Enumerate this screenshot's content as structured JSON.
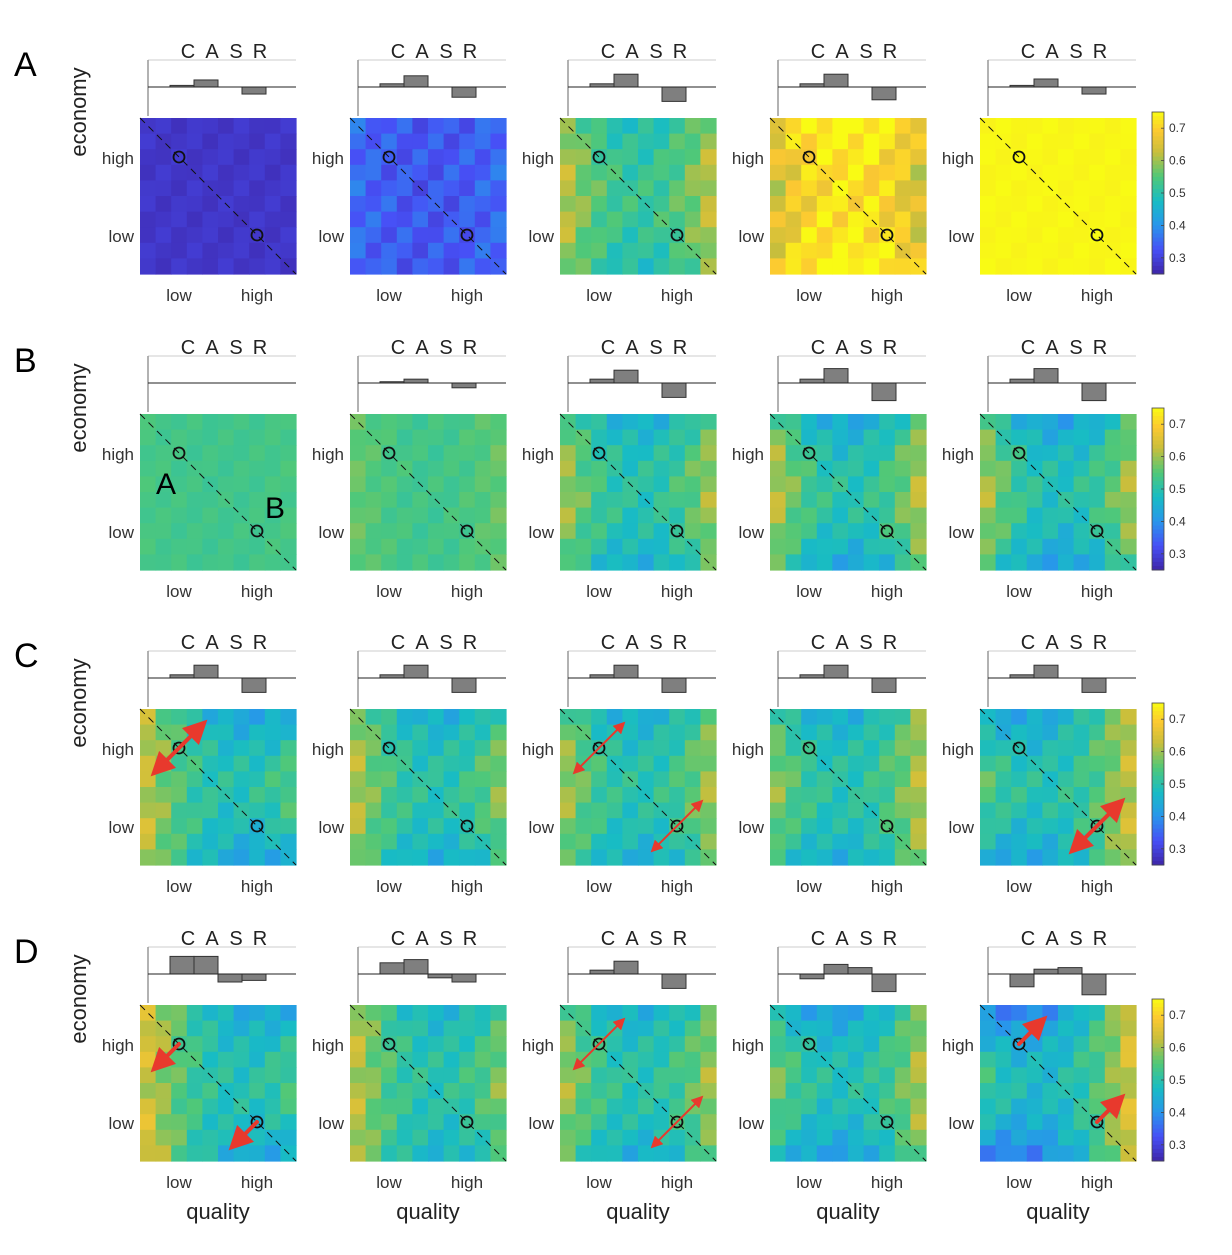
{
  "chart_data": {
    "type": "heatmap",
    "rows": [
      {
        "label": "A"
      },
      {
        "label": "B"
      },
      {
        "label": "C"
      },
      {
        "label": "D"
      }
    ],
    "bar_labels": [
      "C",
      "A",
      "S",
      "R"
    ],
    "xlabel": "quality",
    "ylabel": "economy",
    "x_ticks": [
      "low",
      "high"
    ],
    "y_ticks": [
      "high",
      "low"
    ],
    "point_labels": [
      "A",
      "B"
    ],
    "colorbar": {
      "ticks": [
        0.3,
        0.4,
        0.5,
        0.6,
        0.7
      ],
      "tick_labels": [
        "0.3",
        "0.4",
        "0.5",
        "0.6",
        "0.7"
      ],
      "range": [
        0.25,
        0.75
      ]
    },
    "panels": [
      [
        {
          "bars": [
            0.05,
            0.22,
            0,
            -0.22
          ],
          "field": {
            "base": 0.28,
            "edge": 0,
            "mid": 0,
            "grad": 0,
            "var": 0.01
          },
          "arrows": []
        },
        {
          "bars": [
            0.1,
            0.35,
            0,
            -0.32
          ],
          "field": {
            "base": 0.33,
            "edge": 0.03,
            "mid": 0,
            "grad": 0,
            "var": 0.03
          },
          "arrows": []
        },
        {
          "bars": [
            0.1,
            0.4,
            0,
            -0.45
          ],
          "field": {
            "base": 0.52,
            "edge": 0.12,
            "mid": -0.04,
            "grad": 0,
            "var": 0.03
          },
          "arrows": []
        },
        {
          "bars": [
            0.1,
            0.4,
            0,
            -0.4
          ],
          "field": {
            "base": 0.72,
            "edge": -0.1,
            "mid": 0.05,
            "grad": 0,
            "var": 0.04
          },
          "arrows": []
        },
        {
          "bars": [
            0.05,
            0.25,
            0,
            -0.22
          ],
          "field": {
            "base": 0.745,
            "edge": 0,
            "mid": 0,
            "grad": 0,
            "var": 0.005
          },
          "arrows": []
        }
      ],
      [
        {
          "bars": [
            0.01,
            0.01,
            0,
            -0.01
          ],
          "field": {
            "base": 0.53,
            "edge": 0.01,
            "mid": 0,
            "grad": 0,
            "var": 0.01
          },
          "arrows": []
        },
        {
          "bars": [
            0.04,
            0.12,
            0,
            -0.15
          ],
          "field": {
            "base": 0.53,
            "edge": 0.04,
            "mid": 0,
            "grad": 0,
            "var": 0.015
          },
          "arrows": []
        },
        {
          "bars": [
            0.12,
            0.4,
            0,
            -0.45
          ],
          "field": {
            "base": 0.5,
            "edge": 0.12,
            "mid": -0.06,
            "grad": 0,
            "var": 0.03
          },
          "arrows": []
        },
        {
          "bars": [
            0.12,
            0.45,
            0,
            -0.55
          ],
          "field": {
            "base": 0.5,
            "edge": 0.14,
            "mid": -0.08,
            "grad": 0,
            "var": 0.03
          },
          "arrows": []
        },
        {
          "bars": [
            0.12,
            0.45,
            0,
            -0.55
          ],
          "field": {
            "base": 0.49,
            "edge": 0.14,
            "mid": -0.08,
            "grad": 0,
            "var": 0.03
          },
          "arrows": []
        }
      ],
      [
        {
          "bars": [
            0.1,
            0.4,
            0,
            -0.45
          ],
          "field": {
            "base": 0.5,
            "edge": 0.1,
            "mid": -0.06,
            "grad": -0.08,
            "var": 0.03
          },
          "arrows": [
            {
              "cx": 0.25,
              "cy": 0.25,
              "size": 0.18,
              "width": 4,
              "dir": "both"
            }
          ]
        },
        {
          "bars": [
            0.1,
            0.4,
            0,
            -0.45
          ],
          "field": {
            "base": 0.5,
            "edge": 0.12,
            "mid": -0.06,
            "grad": -0.03,
            "var": 0.03
          },
          "arrows": []
        },
        {
          "bars": [
            0.1,
            0.4,
            0,
            -0.45
          ],
          "field": {
            "base": 0.5,
            "edge": 0.12,
            "mid": -0.06,
            "grad": 0,
            "var": 0.03
          },
          "arrows": [
            {
              "cx": 0.25,
              "cy": 0.25,
              "size": 0.2,
              "width": 2,
              "dir": "both"
            },
            {
              "cx": 0.75,
              "cy": 0.75,
              "size": 0.2,
              "width": 2,
              "dir": "both"
            }
          ]
        },
        {
          "bars": [
            0.1,
            0.4,
            0,
            -0.45
          ],
          "field": {
            "base": 0.5,
            "edge": 0.12,
            "mid": -0.06,
            "grad": 0.03,
            "var": 0.03
          },
          "arrows": []
        },
        {
          "bars": [
            0.1,
            0.4,
            0,
            -0.45
          ],
          "field": {
            "base": 0.5,
            "edge": 0.1,
            "mid": -0.06,
            "grad": 0.08,
            "var": 0.03
          },
          "arrows": [
            {
              "cx": 0.75,
              "cy": 0.75,
              "size": 0.18,
              "width": 4,
              "dir": "both"
            }
          ]
        }
      ],
      [
        {
          "bars": [
            0.55,
            0.55,
            -0.25,
            -0.2
          ],
          "field": {
            "base": 0.5,
            "edge": 0.1,
            "mid": -0.04,
            "grad": -0.1,
            "var": 0.03
          },
          "arrows": [
            {
              "cx": 0.25,
              "cy": 0.25,
              "size": 0.18,
              "width": 4,
              "dir": "out-left"
            },
            {
              "cx": 0.75,
              "cy": 0.75,
              "size": 0.18,
              "width": 4,
              "dir": "out-left"
            }
          ]
        },
        {
          "bars": [
            0.35,
            0.45,
            -0.12,
            -0.25
          ],
          "field": {
            "base": 0.5,
            "edge": 0.12,
            "mid": -0.04,
            "grad": -0.04,
            "var": 0.03
          },
          "arrows": []
        },
        {
          "bars": [
            0.12,
            0.4,
            0,
            -0.45
          ],
          "field": {
            "base": 0.5,
            "edge": 0.12,
            "mid": -0.06,
            "grad": 0,
            "var": 0.03
          },
          "arrows": [
            {
              "cx": 0.25,
              "cy": 0.25,
              "size": 0.2,
              "width": 2,
              "dir": "both"
            },
            {
              "cx": 0.75,
              "cy": 0.75,
              "size": 0.2,
              "width": 2,
              "dir": "both"
            }
          ]
        },
        {
          "bars": [
            -0.15,
            0.3,
            0.2,
            -0.55
          ],
          "field": {
            "base": 0.49,
            "edge": 0.12,
            "mid": -0.08,
            "grad": 0.04,
            "var": 0.03
          },
          "arrows": []
        },
        {
          "bars": [
            -0.4,
            0.15,
            0.2,
            -0.65
          ],
          "field": {
            "base": 0.48,
            "edge": 0.12,
            "mid": -0.08,
            "grad": 0.12,
            "var": 0.03
          },
          "arrows": [
            {
              "cx": 0.25,
              "cy": 0.25,
              "size": 0.18,
              "width": 4,
              "dir": "out-right"
            },
            {
              "cx": 0.75,
              "cy": 0.75,
              "size": 0.18,
              "width": 4,
              "dir": "out-right"
            }
          ]
        }
      ]
    ]
  }
}
